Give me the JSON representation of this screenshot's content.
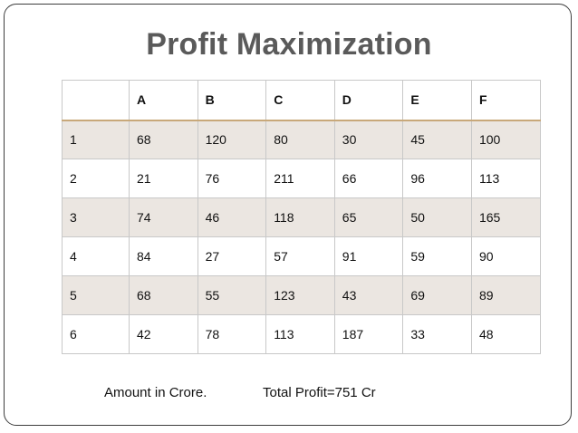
{
  "title": "Profit Maximization",
  "table": {
    "columns": [
      "",
      "A",
      "B",
      "C",
      "D",
      "E",
      "F"
    ],
    "rows": [
      [
        "1",
        "68",
        "120",
        "80",
        "30",
        "45",
        "100"
      ],
      [
        "2",
        "21",
        "76",
        "211",
        "66",
        "96",
        "113"
      ],
      [
        "3",
        "74",
        "46",
        "118",
        "65",
        "50",
        "165"
      ],
      [
        "4",
        "84",
        "27",
        "57",
        "91",
        "59",
        "90"
      ],
      [
        "5",
        "68",
        "55",
        "123",
        "43",
        "69",
        "89"
      ],
      [
        "6",
        "42",
        "78",
        "113",
        "187",
        "33",
        "48"
      ]
    ]
  },
  "footer": {
    "unit_note": "Amount in Crore.",
    "total": "Total Profit=751 Cr"
  },
  "colors": {
    "title": "#5a5a5a",
    "row_shade": "#ebe6e1",
    "header_rule": "#c8a87a",
    "frame": "#3d3d3d"
  }
}
